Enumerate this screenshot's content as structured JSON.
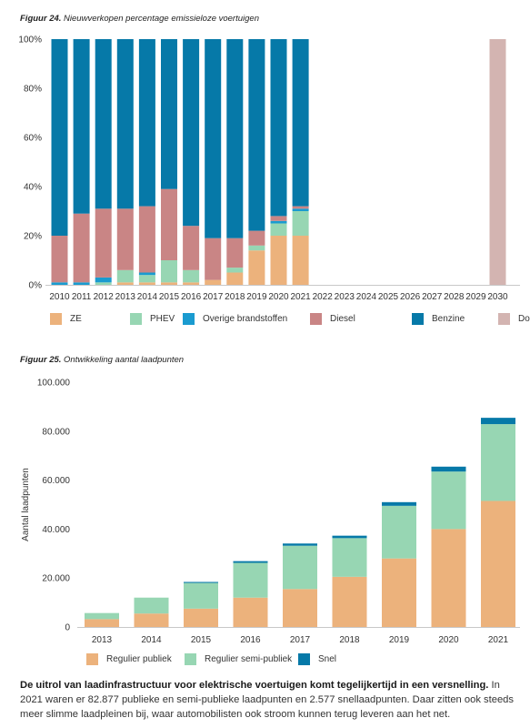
{
  "figure24": {
    "label": "Figuur 24.",
    "title": "Nieuwverkopen percentage emissieloze voertuigen",
    "chart_data": {
      "type": "bar",
      "stacked": true,
      "categories": [
        "2010",
        "2011",
        "2012",
        "2013",
        "2014",
        "2015",
        "2016",
        "2017",
        "2018",
        "2019",
        "2020",
        "2021",
        "2022",
        "2023",
        "2024",
        "2025",
        "2026",
        "2027",
        "2028",
        "2029",
        "2030"
      ],
      "y_ticks": [
        "0%",
        "20%",
        "40%",
        "60%",
        "80%",
        "100%"
      ],
      "ylim": [
        0,
        100
      ],
      "grid": false,
      "legend_position": "bottom",
      "series": [
        {
          "name": "ZE",
          "color": "#ecb27c",
          "values": [
            0,
            0,
            0,
            1,
            1,
            1,
            1,
            2,
            5,
            14,
            20,
            20,
            0,
            0,
            0,
            0,
            0,
            0,
            0,
            0,
            0
          ]
        },
        {
          "name": "PHEV",
          "color": "#97d6b3",
          "values": [
            0,
            0,
            1,
            5,
            3,
            9,
            5,
            0,
            2,
            2,
            5,
            10,
            0,
            0,
            0,
            0,
            0,
            0,
            0,
            0,
            0
          ]
        },
        {
          "name": "Overige brandstoffen",
          "color": "#1a9bd0",
          "values": [
            1,
            1,
            2,
            0,
            1,
            0,
            0,
            0,
            0,
            0,
            1,
            1,
            0,
            0,
            0,
            0,
            0,
            0,
            0,
            0,
            0
          ]
        },
        {
          "name": "Diesel",
          "color": "#c98585",
          "values": [
            19,
            28,
            28,
            25,
            27,
            29,
            18,
            17,
            12,
            6,
            2,
            1,
            0,
            0,
            0,
            0,
            0,
            0,
            0,
            0,
            0
          ]
        },
        {
          "name": "Benzine",
          "color": "#0679a8",
          "values": [
            80,
            71,
            69,
            69,
            68,
            61,
            76,
            81,
            81,
            78,
            72,
            68,
            0,
            0,
            0,
            0,
            0,
            0,
            0,
            0,
            0
          ]
        },
        {
          "name": "Doel ZE",
          "color": "#d3b4b1",
          "values": [
            0,
            0,
            0,
            0,
            0,
            0,
            0,
            0,
            0,
            0,
            0,
            0,
            0,
            0,
            0,
            0,
            0,
            0,
            0,
            0,
            100
          ]
        }
      ]
    }
  },
  "figure25": {
    "label": "Figuur 25.",
    "title": "Ontwikkeling aantal laadpunten",
    "chart_data": {
      "type": "bar",
      "stacked": true,
      "categories": [
        "2013",
        "2014",
        "2015",
        "2016",
        "2017",
        "2018",
        "2019",
        "2020",
        "2021"
      ],
      "y_ticks": [
        "0",
        "20.000",
        "40.000",
        "60.000",
        "80.000",
        "100.000"
      ],
      "ylim": [
        0,
        100000
      ],
      "ylabel": "Aantal laadpunten",
      "grid": false,
      "legend_position": "bottom",
      "series": [
        {
          "name": "Regulier publiek",
          "color": "#ecb27c",
          "values": [
            3200,
            5500,
            7500,
            12000,
            15500,
            20500,
            28000,
            40000,
            51500
          ]
        },
        {
          "name": "Regulier semi-publiek",
          "color": "#97d6b3",
          "values": [
            2500,
            6500,
            10500,
            14200,
            17700,
            15800,
            21500,
            23500,
            31377
          ]
        },
        {
          "name": "Snel",
          "color": "#0679a8",
          "values": [
            0,
            0,
            400,
            700,
            900,
            1000,
            1500,
            2000,
            2577
          ]
        }
      ]
    }
  },
  "caption": {
    "bold": "De uitrol van laadinfrastructuur voor elektrische voertuigen komt tegelijkertijd in een versnelling.",
    "text": " In 2021 waren er 82.877 publieke en semi-publieke laadpunten en 2.577 snellaadpunten. Daar zitten ook steeds meer slimme laadpleinen bij, waar automobilisten ook stroom kunnen terug leveren aan het net."
  }
}
